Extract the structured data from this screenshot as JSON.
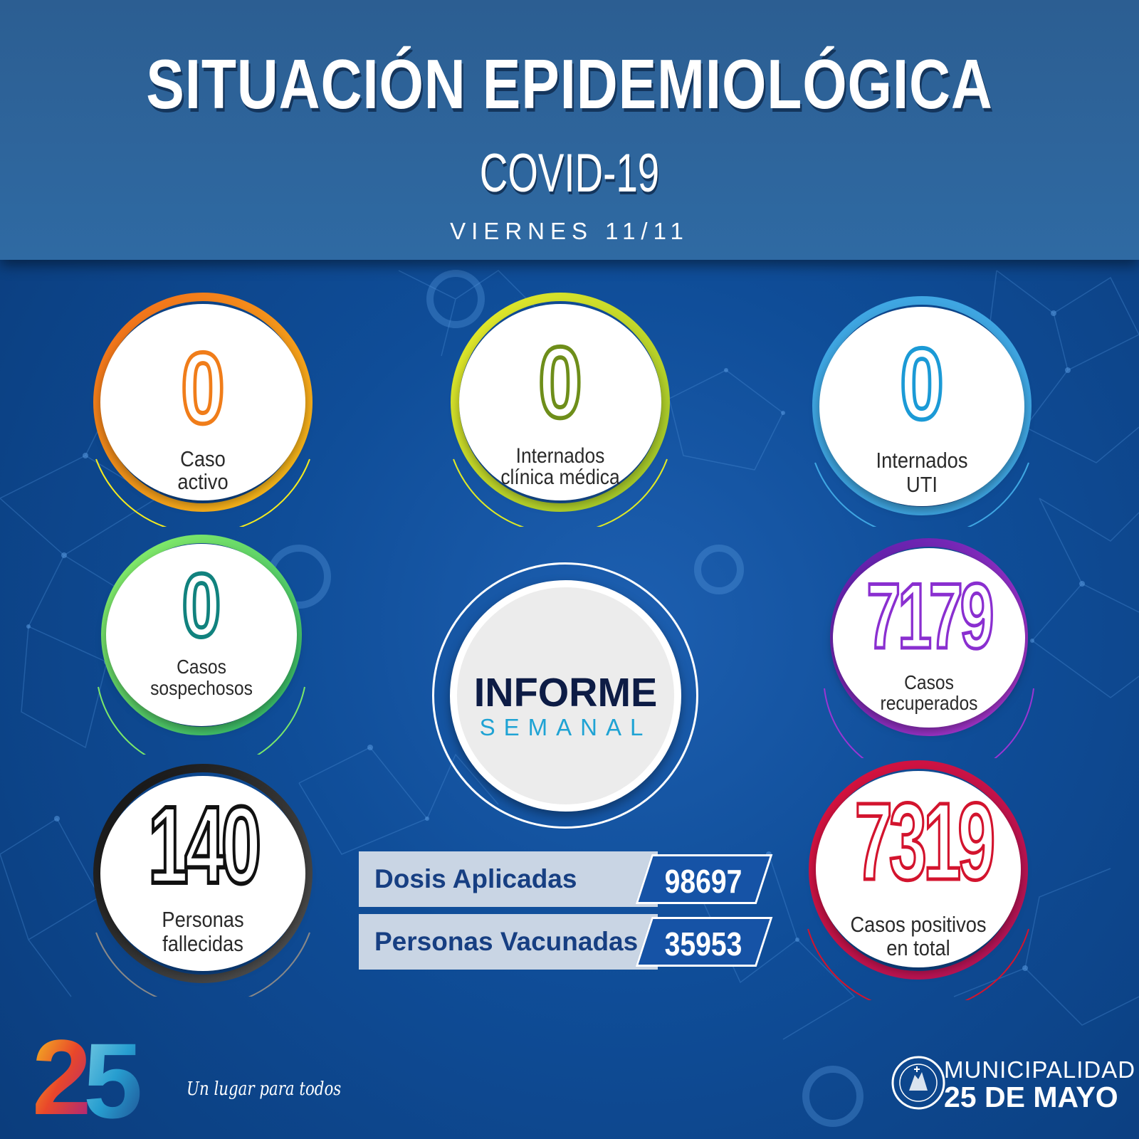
{
  "header": {
    "title": "SITUACIÓN EPIDEMIOLÓGICA",
    "subtitle": "COVID-19",
    "date": "VIERNES 11/11"
  },
  "stats": {
    "caso_activo": {
      "value": "0",
      "label1": "Caso",
      "label2": "activo",
      "color": "#f07d1a"
    },
    "internados_clinica": {
      "value": "0",
      "label1": "Internados",
      "label2": "clínica médica",
      "color": "#6e8e1a"
    },
    "internados_uti": {
      "value": "0",
      "label1": "Internados",
      "label2": "UTI",
      "color": "#1b9ad6"
    },
    "casos_sospechosos": {
      "value": "0",
      "label1": "Casos",
      "label2": "sospechosos",
      "color": "#11827e"
    },
    "casos_recuperados": {
      "value": "7179",
      "label1": "Casos",
      "label2": "recuperados",
      "color": "#8a2fd0"
    },
    "personas_fallecidas": {
      "value": "140",
      "label1": "Personas",
      "label2": "fallecidas",
      "color": "#111111"
    },
    "casos_positivos": {
      "value": "7319",
      "label1": "Casos positivos",
      "label2": "en total",
      "color": "#d3142e"
    }
  },
  "informe": {
    "line1": "INFORME",
    "line2": "SEMANAL"
  },
  "vaccination": {
    "dosis_label": "Dosis Aplicadas",
    "dosis_value": "98697",
    "vacunadas_label": "Personas Vacunadas",
    "vacunadas_value": "35953"
  },
  "footer": {
    "logo_number": "25",
    "tagline": "Un lugar para todos",
    "municipality_line1": "MUNICIPALIDAD",
    "municipality_line2": "25 DE MAYO",
    "seal_text": "MUNICIPALIDAD DE 25 DE MAYO"
  }
}
